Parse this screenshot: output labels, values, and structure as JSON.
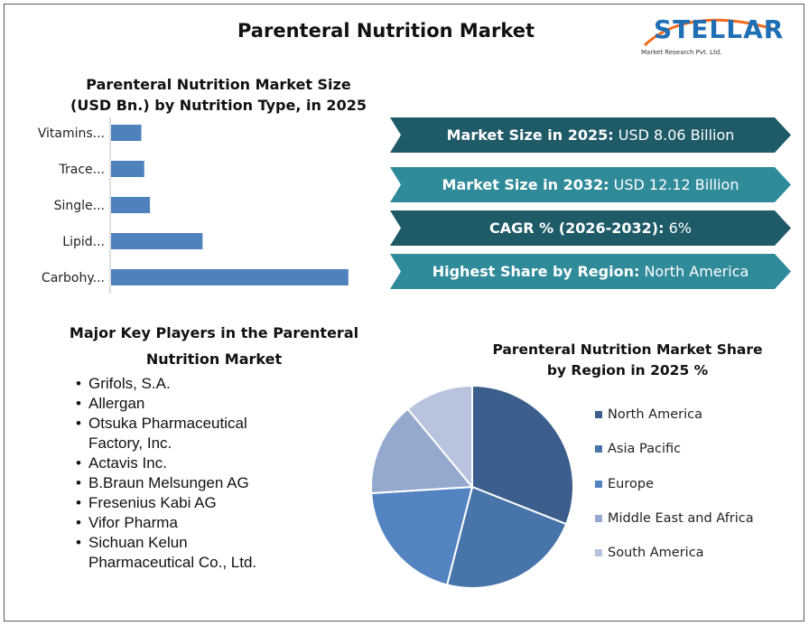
{
  "page": {
    "title": "Parenteral Nutrition Market"
  },
  "logo": {
    "name": "STELLAR",
    "tagline": "Market Research Pvt. Ltd."
  },
  "banners": [
    {
      "label": "Market Size in 2025:",
      "value": " USD 8.06 Billion",
      "color": "#1f5b67"
    },
    {
      "label": "Market Size in 2032:",
      "value": " USD 12.12 Billion",
      "color": "#2f8a9a"
    },
    {
      "label": "CAGR % (2026-2032):",
      "value": " 6%",
      "color": "#1f5b67"
    },
    {
      "label": "Highest Share by Region:",
      "value": " North America",
      "color": "#2f8a9a"
    }
  ],
  "key_players": {
    "title": "Major Key Players in the Parenteral Nutrition Market",
    "items": [
      "Grifols, S.A.",
      "Allergan",
      "Otsuka Pharmaceutical Factory, Inc.",
      "Actavis Inc.",
      "B.Braun Melsungen AG",
      "Fresenius Kabi AG",
      "Vifor Pharma",
      "Sichuan Kelun Pharmaceutical Co., Ltd."
    ]
  },
  "chart_data": [
    {
      "type": "bar",
      "orientation": "horizontal",
      "title": "Parenteral Nutrition Market Size (USD Bn.) by Nutrition Type, in 2025",
      "categories": [
        "Carbohy...",
        "Lipid...",
        "Single...",
        "Trace...",
        "Vitamins..."
      ],
      "values": [
        4.15,
        1.6,
        0.68,
        0.58,
        0.53
      ],
      "xlim": [
        0,
        4.5
      ],
      "axis_values_shown": false,
      "grid": false,
      "bar_color": "#4f81bd"
    },
    {
      "type": "pie",
      "title": "Parenteral Nutrition Market Share by Region in 2025 %",
      "labels": [
        "North America",
        "Asia Pacific",
        "Europe",
        "Middle East and Africa",
        "South America"
      ],
      "values": [
        31,
        23,
        20,
        15,
        11
      ],
      "colors": [
        "#3b5e8c",
        "#4775aa",
        "#5483c2",
        "#95a9cf",
        "#b8c4de"
      ],
      "legend_position": "right"
    }
  ]
}
